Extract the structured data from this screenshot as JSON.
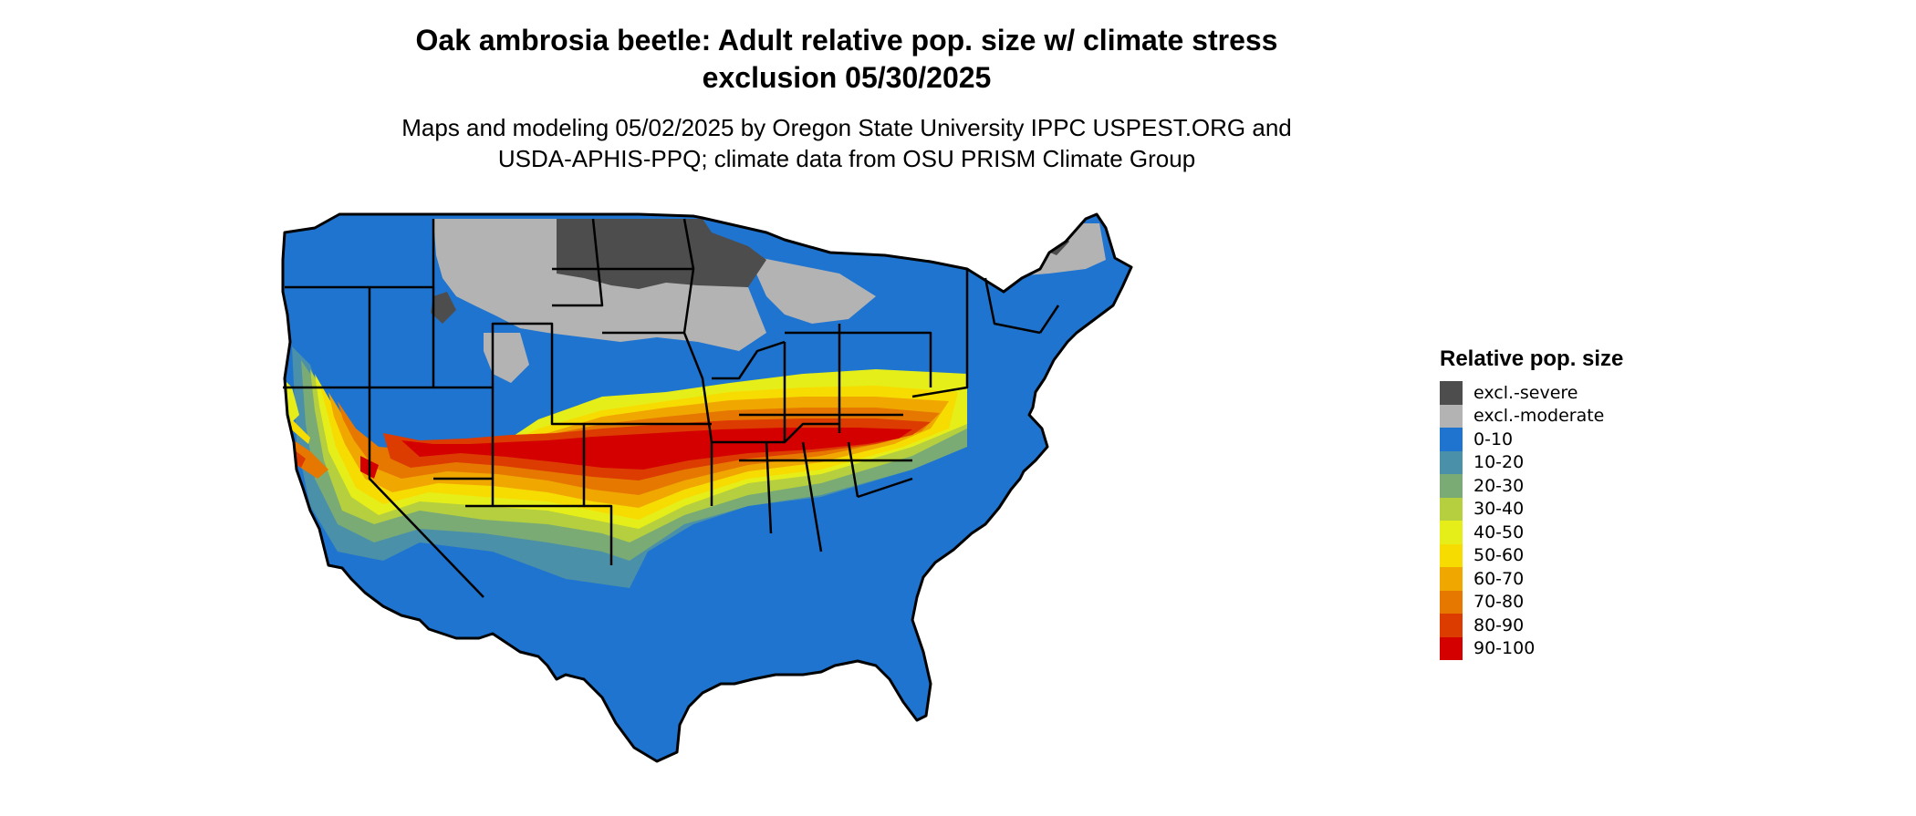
{
  "title_line1": "Oak ambrosia beetle: Adult relative pop. size w/ climate stress",
  "title_line2": "exclusion 05/30/2025",
  "subtitle_line1": "Maps and modeling 05/02/2025 by Oregon State University IPPC USPEST.ORG and",
  "subtitle_line2": "USDA-APHIS-PPQ; climate data from OSU PRISM Climate Group",
  "legend": {
    "title": "Relative pop. size",
    "items": [
      {
        "label": "excl.-severe",
        "color": "#4d4d4d"
      },
      {
        "label": "excl.-moderate",
        "color": "#b3b3b3"
      },
      {
        "label": "0-10",
        "color": "#1f74cf"
      },
      {
        "label": "10-20",
        "color": "#4a90a8"
      },
      {
        "label": "20-30",
        "color": "#7aab74"
      },
      {
        "label": "30-40",
        "color": "#b5cf3e"
      },
      {
        "label": "40-50",
        "color": "#e6ee1a"
      },
      {
        "label": "50-60",
        "color": "#f7dc00"
      },
      {
        "label": "60-70",
        "color": "#f0a800"
      },
      {
        "label": "70-80",
        "color": "#e67800"
      },
      {
        "label": "80-90",
        "color": "#dc3c00"
      },
      {
        "label": "90-100",
        "color": "#d40000"
      }
    ]
  }
}
